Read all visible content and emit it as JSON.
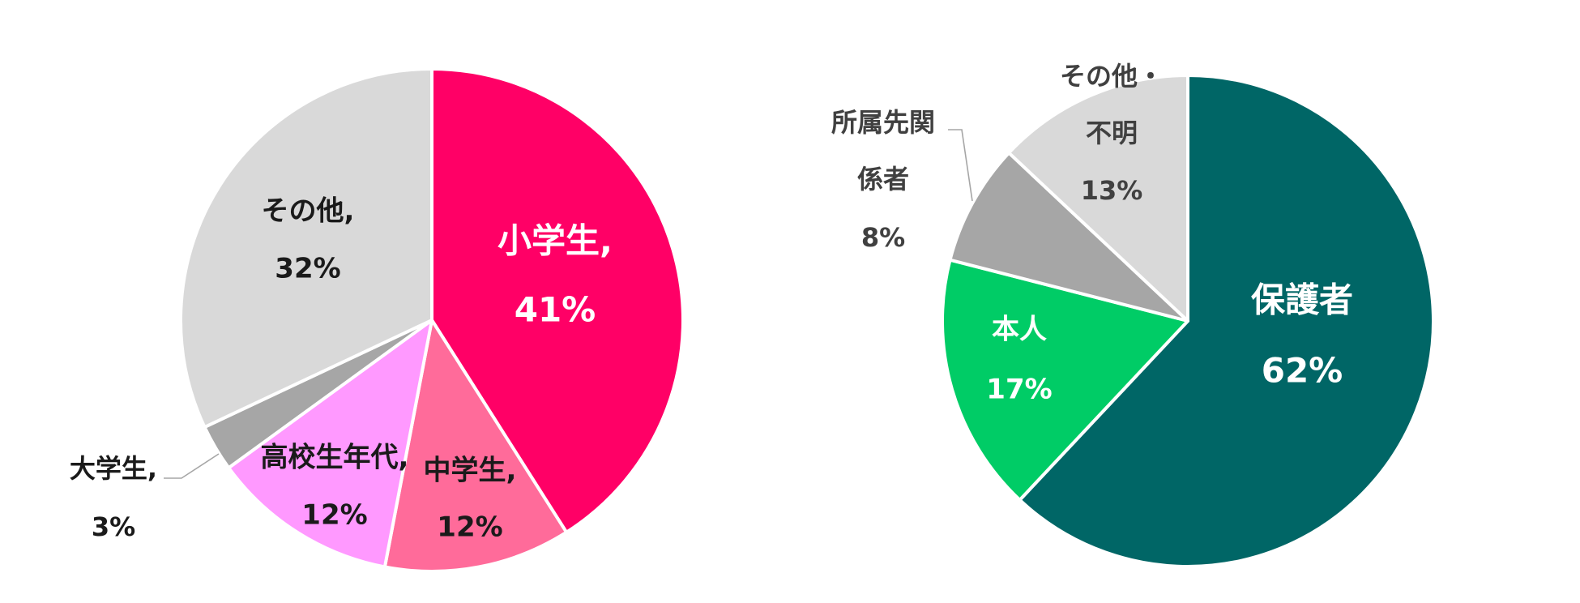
{
  "chart_data": [
    {
      "type": "pie",
      "slices": [
        {
          "label": "小学生,",
          "value": 41,
          "value_label": "41%",
          "color": "#ff0066",
          "text_color": "#ffffff"
        },
        {
          "label": "中学生,",
          "value": 12,
          "value_label": "12%",
          "color": "#ff6b9a",
          "text_color": "#1a1a1a"
        },
        {
          "label": "高校生年代,",
          "value": 12,
          "value_label": "12%",
          "color": "#ff99ff",
          "text_color": "#1a1a1a"
        },
        {
          "label": "大学生,",
          "value": 3,
          "value_label": "3%",
          "color": "#a6a6a6",
          "text_color": "#1a1a1a"
        },
        {
          "label": "その他,",
          "value": 32,
          "value_label": "32%",
          "color": "#d9d9d9",
          "text_color": "#1a1a1a"
        }
      ]
    },
    {
      "type": "pie",
      "slices": [
        {
          "label": "保護者",
          "value": 62,
          "value_label": "62%",
          "color": "#006666",
          "text_color": "#ffffff"
        },
        {
          "label": "本人",
          "value": 17,
          "value_label": "17%",
          "color": "#00cc66",
          "text_color": "#ffffff"
        },
        {
          "label": [
            "所属先関",
            "係者"
          ],
          "value": 8,
          "value_label": "8%",
          "color": "#a6a6a6",
          "text_color": "#404040"
        },
        {
          "label": [
            "その他・",
            "不明"
          ],
          "value": 13,
          "value_label": "13%",
          "color": "#d9d9d9",
          "text_color": "#404040"
        }
      ]
    }
  ]
}
